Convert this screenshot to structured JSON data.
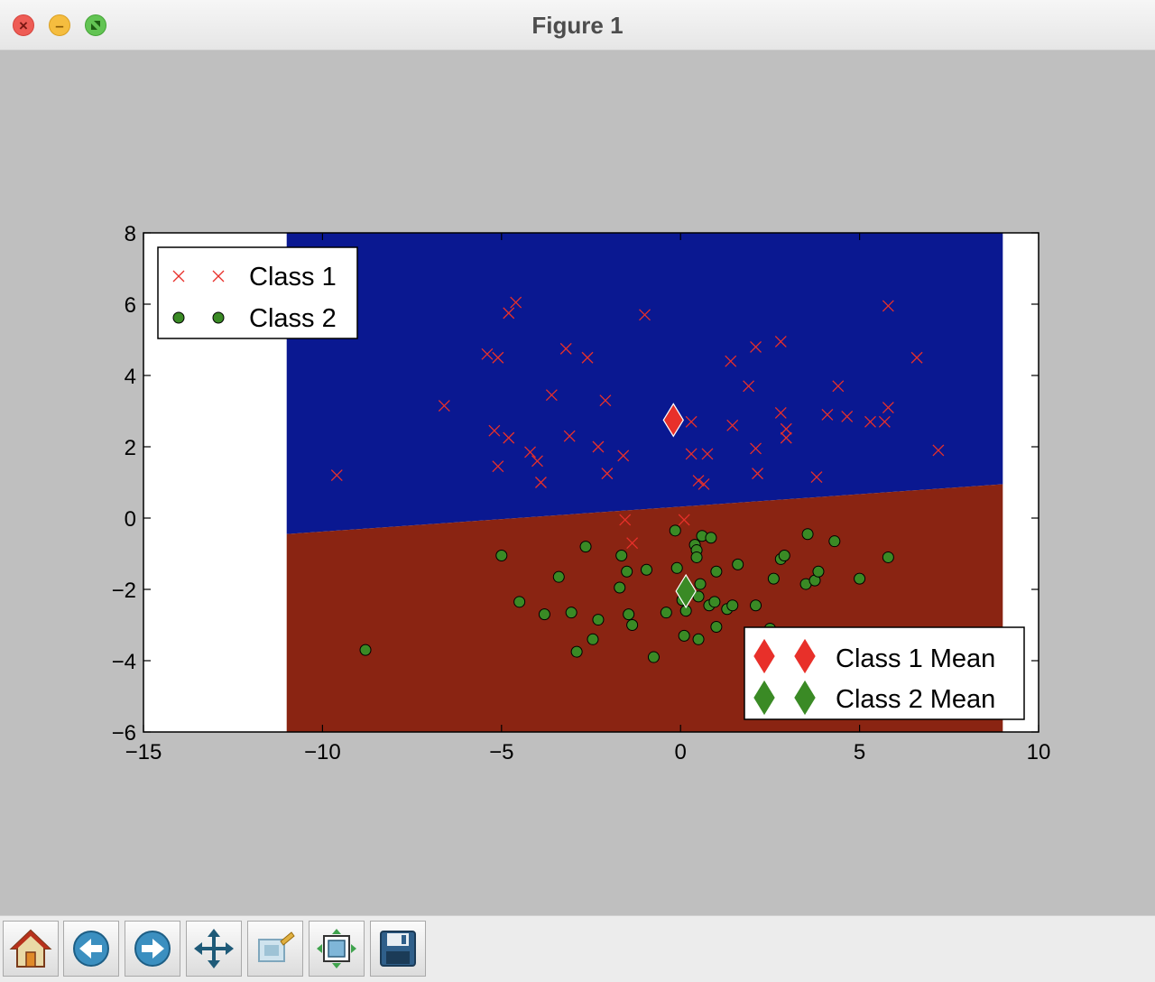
{
  "window": {
    "title": "Figure 1"
  },
  "toolbar": {
    "buttons": [
      {
        "icon": "home-icon"
      },
      {
        "icon": "back-arrow-icon"
      },
      {
        "icon": "forward-arrow-icon"
      },
      {
        "icon": "pan-icon"
      },
      {
        "icon": "zoom-icon"
      },
      {
        "icon": "subplots-configure-icon"
      },
      {
        "icon": "save-icon"
      }
    ]
  },
  "colors": {
    "figure_background": "#bfbfbf",
    "class1_region": "#0a1891",
    "class2_region": "#8a2412",
    "class1_marker": "#e8302a",
    "class2_marker": "#3a8a25"
  },
  "chart_data": {
    "type": "scatter",
    "xlim": [
      -15,
      10
    ],
    "ylim": [
      -6,
      8
    ],
    "x_ticks": [
      "−15",
      "−10",
      "−5",
      "0",
      "5",
      "10"
    ],
    "y_ticks": [
      "8",
      "6",
      "4",
      "2",
      "0",
      "−2",
      "−4",
      "−6"
    ],
    "regions": {
      "x_range": [
        -11,
        9
      ],
      "boundary": {
        "x": [
          -11,
          9
        ],
        "y": [
          -0.45,
          0.95
        ]
      },
      "upper": "Class 1",
      "lower": "Class 2"
    },
    "series": [
      {
        "name": "Class 1",
        "marker": "x",
        "color": "#e8302a",
        "points": [
          [
            -9.6,
            1.2
          ],
          [
            -6.6,
            3.15
          ],
          [
            -5.4,
            4.6
          ],
          [
            -5.1,
            4.5
          ],
          [
            -5.2,
            2.45
          ],
          [
            -5.1,
            1.45
          ],
          [
            -4.8,
            5.75
          ],
          [
            -4.6,
            6.05
          ],
          [
            -4.8,
            2.25
          ],
          [
            -4.2,
            1.85
          ],
          [
            -4.0,
            1.6
          ],
          [
            -3.9,
            1.0
          ],
          [
            -3.6,
            3.45
          ],
          [
            -3.2,
            4.75
          ],
          [
            -3.1,
            2.3
          ],
          [
            -2.6,
            4.5
          ],
          [
            -2.3,
            2.0
          ],
          [
            -2.1,
            3.3
          ],
          [
            -2.05,
            1.25
          ],
          [
            -1.6,
            1.75
          ],
          [
            -1.55,
            -0.05
          ],
          [
            -1.35,
            -0.7
          ],
          [
            -1.0,
            5.7
          ],
          [
            0.3,
            2.7
          ],
          [
            0.3,
            1.8
          ],
          [
            0.5,
            1.05
          ],
          [
            0.65,
            0.95
          ],
          [
            0.75,
            1.8
          ],
          [
            0.1,
            -0.05
          ],
          [
            1.4,
            4.4
          ],
          [
            1.45,
            2.6
          ],
          [
            1.9,
            3.7
          ],
          [
            2.1,
            4.8
          ],
          [
            2.1,
            1.95
          ],
          [
            2.15,
            1.25
          ],
          [
            2.8,
            4.95
          ],
          [
            2.8,
            2.95
          ],
          [
            2.95,
            2.25
          ],
          [
            2.95,
            2.5
          ],
          [
            3.8,
            1.15
          ],
          [
            4.1,
            2.9
          ],
          [
            4.4,
            3.7
          ],
          [
            4.65,
            2.85
          ],
          [
            5.3,
            2.7
          ],
          [
            5.7,
            2.7
          ],
          [
            5.8,
            5.95
          ],
          [
            5.8,
            3.1
          ],
          [
            6.6,
            4.5
          ],
          [
            7.2,
            1.9
          ]
        ]
      },
      {
        "name": "Class 2",
        "marker": "o",
        "color": "#3a8a25",
        "points": [
          [
            -8.8,
            -3.7
          ],
          [
            -5.0,
            -1.05
          ],
          [
            -4.5,
            -2.35
          ],
          [
            -3.8,
            -2.7
          ],
          [
            -3.4,
            -1.65
          ],
          [
            -3.05,
            -2.65
          ],
          [
            -2.9,
            -3.75
          ],
          [
            -2.65,
            -0.8
          ],
          [
            -2.45,
            -3.4
          ],
          [
            -2.3,
            -2.85
          ],
          [
            -1.7,
            -1.95
          ],
          [
            -1.65,
            -1.05
          ],
          [
            -1.5,
            -1.5
          ],
          [
            -1.45,
            -2.7
          ],
          [
            -1.35,
            -3.0
          ],
          [
            -0.95,
            -1.45
          ],
          [
            -0.75,
            -3.9
          ],
          [
            -0.4,
            -2.65
          ],
          [
            -0.15,
            -0.35
          ],
          [
            -0.1,
            -1.4
          ],
          [
            0.05,
            -2.3
          ],
          [
            0.1,
            -3.3
          ],
          [
            0.15,
            -2.6
          ],
          [
            0.4,
            -0.75
          ],
          [
            0.45,
            -0.9
          ],
          [
            0.45,
            -1.1
          ],
          [
            0.5,
            -2.2
          ],
          [
            0.5,
            -3.4
          ],
          [
            0.55,
            -1.85
          ],
          [
            0.6,
            -0.5
          ],
          [
            0.8,
            -2.45
          ],
          [
            0.85,
            -0.55
          ],
          [
            0.95,
            -2.35
          ],
          [
            1.0,
            -3.05
          ],
          [
            1.0,
            -1.5
          ],
          [
            1.3,
            -2.55
          ],
          [
            1.45,
            -2.45
          ],
          [
            1.6,
            -1.3
          ],
          [
            2.1,
            -2.45
          ],
          [
            2.5,
            -3.1
          ],
          [
            2.6,
            -1.7
          ],
          [
            2.8,
            -1.15
          ],
          [
            2.9,
            -1.05
          ],
          [
            3.5,
            -1.85
          ],
          [
            3.55,
            -0.45
          ],
          [
            3.75,
            -1.75
          ],
          [
            3.85,
            -1.5
          ],
          [
            4.3,
            -0.65
          ],
          [
            5.0,
            -1.7
          ],
          [
            5.8,
            -1.1
          ]
        ]
      }
    ],
    "means": [
      {
        "name": "Class 1 Mean",
        "x": -0.2,
        "y": 2.75,
        "color": "#e8302a"
      },
      {
        "name": "Class 2 Mean",
        "x": 0.15,
        "y": -2.05,
        "color": "#3a8a25"
      }
    ],
    "legends": [
      {
        "placement": "top-left",
        "entries": [
          "Class 1",
          "Class 2"
        ]
      },
      {
        "placement": "bottom-right",
        "entries": [
          "Class 1 Mean",
          "Class 2 Mean"
        ]
      }
    ]
  }
}
